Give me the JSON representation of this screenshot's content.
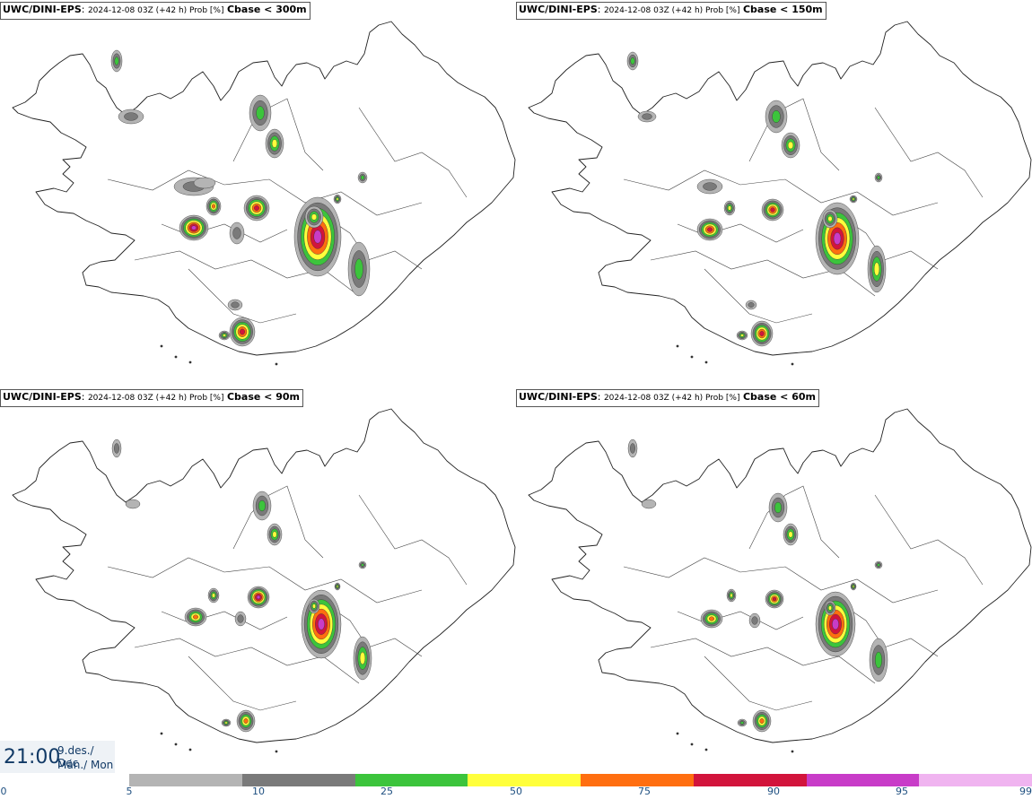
{
  "panels": [
    {
      "model": "UWC/DINI-EPS",
      "run": "2024-12-08 03Z (+42 h) Prob [%]",
      "threshold": "Cbase < 300m"
    },
    {
      "model": "UWC/DINI-EPS",
      "run": "2024-12-08 03Z (+42 h) Prob [%]",
      "threshold": "Cbase < 150m"
    },
    {
      "model": "UWC/DINI-EPS",
      "run": "2024-12-08 03Z (+42 h) Prob [%]",
      "threshold": "Cbase < 90m"
    },
    {
      "model": "UWC/DINI-EPS",
      "run": "2024-12-08 03Z (+42 h) Prob [%]",
      "threshold": "Cbase < 60m"
    }
  ],
  "valid_time": {
    "time": "21:00",
    "date_line1": "9.des./ Dec",
    "date_line2": "Mán./ Mon"
  },
  "legend": {
    "ticks": [
      "0",
      "5",
      "10",
      "25",
      "50",
      "75",
      "90",
      "95",
      "99"
    ],
    "colors": [
      "#b4b4b4",
      "#7a7a7a",
      "#3cc43c",
      "#ffff3c",
      "#ff6e10",
      "#d2143c",
      "#c83cc8",
      "#f0b4f0"
    ]
  }
}
